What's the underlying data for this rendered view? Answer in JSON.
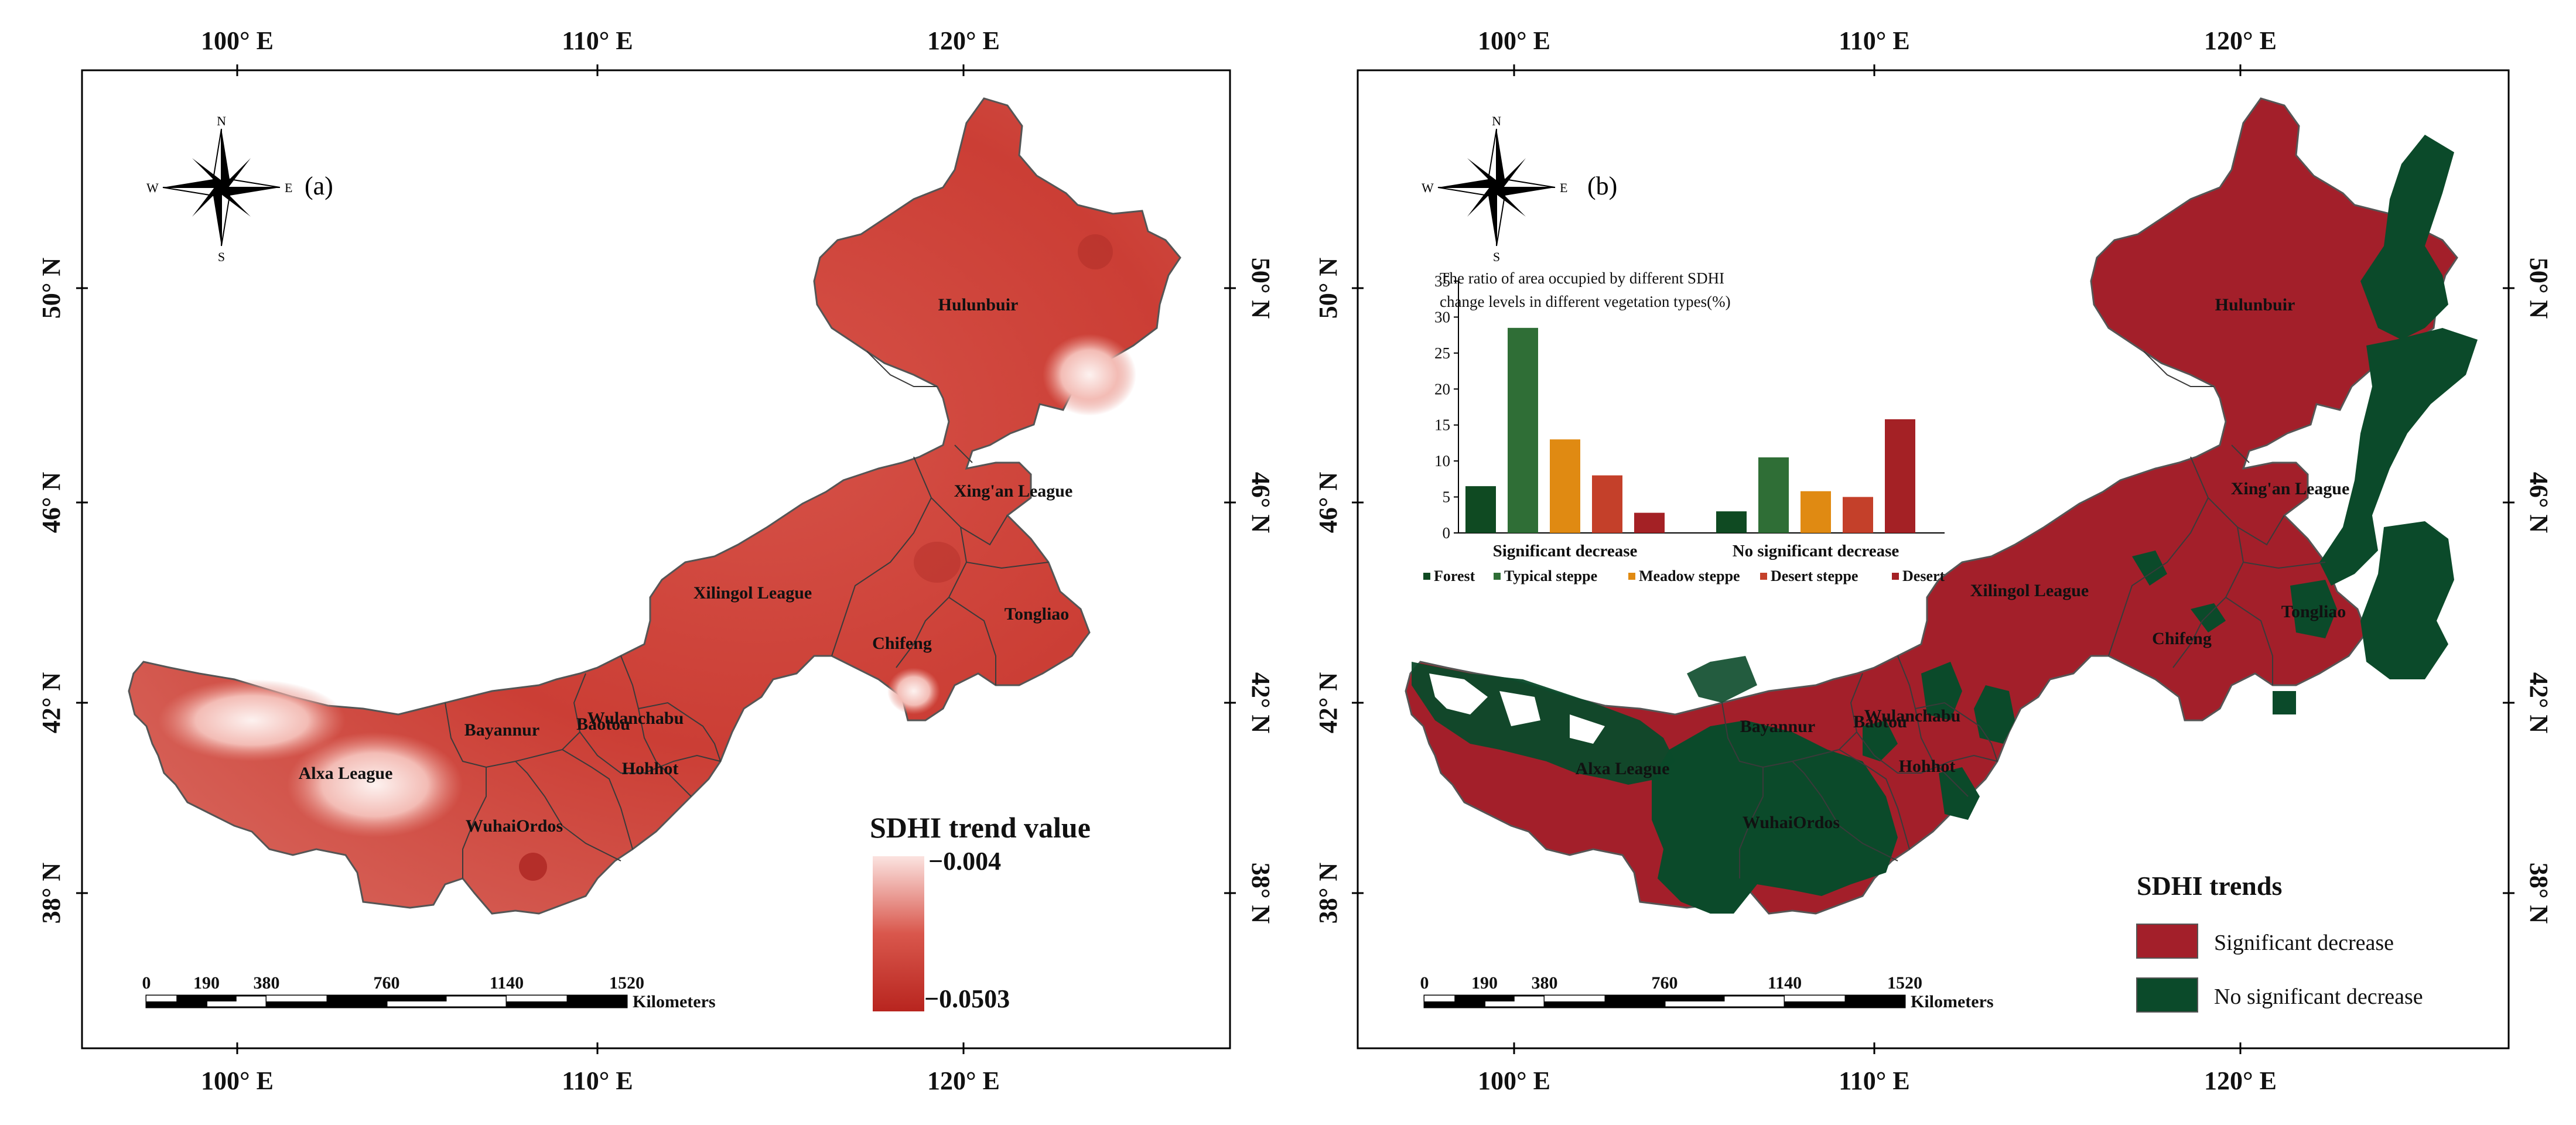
{
  "panels": {
    "a": {
      "label": "(a)",
      "lon_top": [
        "100° E",
        "110° E",
        "120° E"
      ],
      "lon_bottom": [
        "100° E",
        "110° E",
        "120° E"
      ],
      "lat_left": [
        "50° N",
        "46° N",
        "42° N",
        "38° N"
      ],
      "lat_right": [
        "50° N",
        "46° N",
        "42° N",
        "38° N"
      ],
      "regions": [
        "Hulunbuir",
        "Xing'an League",
        "Xilingol League",
        "Chifeng",
        "Tongliao",
        "Wulanchabu",
        "Baotou",
        "Hohhot",
        "Bayannur",
        "Alxa League",
        "WuhaiOrdos"
      ],
      "legend": {
        "title": "SDHI trend value",
        "max_label": "−0.004",
        "min_label": "−0.0503",
        "color_high": "#fbe3e0",
        "color_low": "#b8251f"
      }
    },
    "b": {
      "label": "(b)",
      "lon_top": [
        "100° E",
        "110° E",
        "120° E"
      ],
      "lon_bottom": [
        "100° E",
        "110° E",
        "120° E"
      ],
      "lat_left": [
        "50° N",
        "46° N",
        "42° N",
        "38° N"
      ],
      "lat_right": [
        "50° N",
        "46° N",
        "42° N",
        "38° N"
      ],
      "regions": [
        "Hulunbuir",
        "Xing'an League",
        "Xilingol League",
        "Chifeng",
        "Tongliao",
        "Wulanchabu",
        "Baotou",
        "Hohhot",
        "Bayannur",
        "Alxa League",
        "WuhaiOrdos"
      ],
      "legend": {
        "title": "SDHI trends",
        "items": [
          {
            "label": "Significant decrease",
            "color": "#a31f2a"
          },
          {
            "label": "No significant decrease",
            "color": "#0b4a2a"
          }
        ]
      }
    }
  },
  "compass": {
    "n": "N",
    "s": "S",
    "e": "E",
    "w": "W"
  },
  "scale_bar": {
    "ticks": [
      "0",
      "190",
      "380",
      "760",
      "1140",
      "1520"
    ],
    "unit": "Kilometers"
  },
  "chart_data": {
    "type": "bar",
    "title_line1": "The ratio of area occupied by different SDHI",
    "title_line2": "change levels in different vegetation types(%)",
    "categories": [
      "Significant decrease",
      "No significant decrease"
    ],
    "series": [
      {
        "name": "Forest",
        "color": "#0f4a22",
        "values": [
          6.5,
          3.0
        ]
      },
      {
        "name": "Typical steppe",
        "color": "#2f6e36",
        "values": [
          28.5,
          10.5
        ]
      },
      {
        "name": "Meadow steppe",
        "color": "#e08a12",
        "values": [
          13.0,
          5.8
        ]
      },
      {
        "name": "Desert steppe",
        "color": "#c4402a",
        "values": [
          8.0,
          5.0
        ]
      },
      {
        "name": "Desert",
        "color": "#a42125",
        "values": [
          2.8,
          15.8
        ]
      }
    ],
    "ylim": [
      0,
      35
    ],
    "yticks": [
      "0",
      "5",
      "10",
      "15",
      "20",
      "25",
      "30",
      "35"
    ]
  }
}
